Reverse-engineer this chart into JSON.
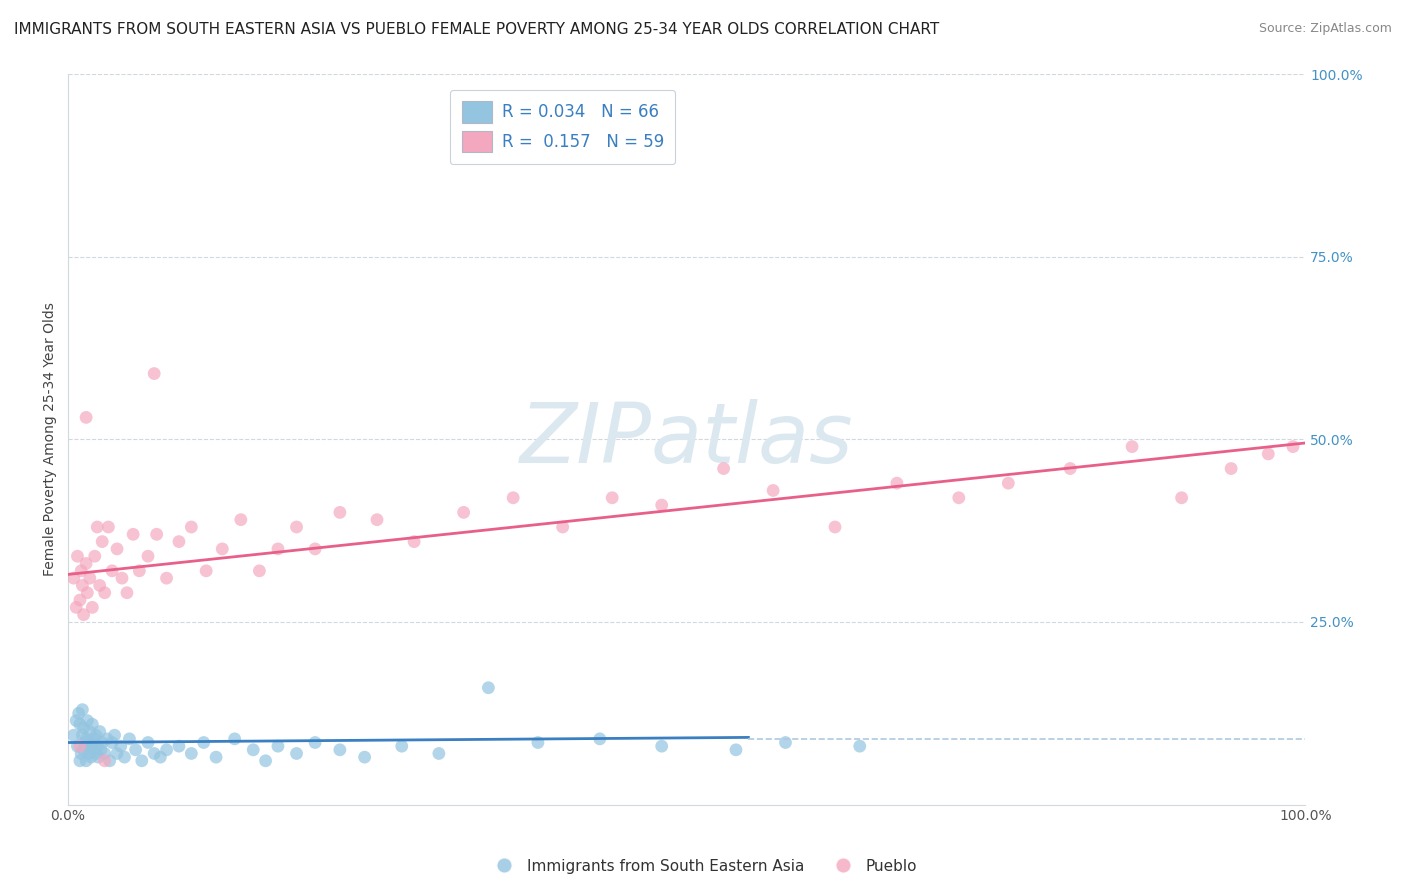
{
  "title": "IMMIGRANTS FROM SOUTH EASTERN ASIA VS PUEBLO FEMALE POVERTY AMONG 25-34 YEAR OLDS CORRELATION CHART",
  "source": "Source: ZipAtlas.com",
  "ylabel": "Female Poverty Among 25-34 Year Olds",
  "color_blue": "#93c4e0",
  "color_pink": "#f4a8c0",
  "line_blue": "#3a7fc1",
  "line_pink": "#e8608a",
  "dash_color": "#b0c8e0",
  "watermark_color": "#dce8f0",
  "blue_x": [
    0.005,
    0.007,
    0.008,
    0.009,
    0.01,
    0.01,
    0.011,
    0.012,
    0.012,
    0.013,
    0.013,
    0.014,
    0.015,
    0.015,
    0.016,
    0.017,
    0.018,
    0.018,
    0.019,
    0.02,
    0.02,
    0.021,
    0.022,
    0.023,
    0.023,
    0.024,
    0.025,
    0.026,
    0.027,
    0.028,
    0.03,
    0.032,
    0.034,
    0.036,
    0.038,
    0.04,
    0.043,
    0.046,
    0.05,
    0.055,
    0.06,
    0.065,
    0.07,
    0.075,
    0.08,
    0.09,
    0.1,
    0.11,
    0.12,
    0.135,
    0.15,
    0.16,
    0.17,
    0.185,
    0.2,
    0.22,
    0.24,
    0.27,
    0.3,
    0.34,
    0.38,
    0.43,
    0.48,
    0.54,
    0.58,
    0.64
  ],
  "blue_y": [
    0.095,
    0.115,
    0.08,
    0.125,
    0.06,
    0.11,
    0.07,
    0.095,
    0.13,
    0.075,
    0.105,
    0.085,
    0.06,
    0.09,
    0.115,
    0.07,
    0.08,
    0.1,
    0.065,
    0.085,
    0.11,
    0.075,
    0.09,
    0.07,
    0.095,
    0.08,
    0.065,
    0.1,
    0.075,
    0.085,
    0.07,
    0.09,
    0.06,
    0.085,
    0.095,
    0.07,
    0.08,
    0.065,
    0.09,
    0.075,
    0.06,
    0.085,
    0.07,
    0.065,
    0.075,
    0.08,
    0.07,
    0.085,
    0.065,
    0.09,
    0.075,
    0.06,
    0.08,
    0.07,
    0.085,
    0.075,
    0.065,
    0.08,
    0.07,
    0.16,
    0.085,
    0.09,
    0.08,
    0.075,
    0.085,
    0.08
  ],
  "pink_x": [
    0.005,
    0.007,
    0.008,
    0.01,
    0.011,
    0.012,
    0.013,
    0.015,
    0.016,
    0.018,
    0.02,
    0.022,
    0.024,
    0.026,
    0.028,
    0.03,
    0.033,
    0.036,
    0.04,
    0.044,
    0.048,
    0.053,
    0.058,
    0.065,
    0.072,
    0.08,
    0.09,
    0.1,
    0.112,
    0.125,
    0.14,
    0.155,
    0.17,
    0.185,
    0.2,
    0.22,
    0.25,
    0.28,
    0.32,
    0.36,
    0.4,
    0.44,
    0.48,
    0.53,
    0.57,
    0.62,
    0.67,
    0.72,
    0.76,
    0.81,
    0.86,
    0.9,
    0.94,
    0.97,
    0.99,
    0.03,
    0.015,
    0.07,
    0.01
  ],
  "pink_y": [
    0.31,
    0.27,
    0.34,
    0.28,
    0.32,
    0.3,
    0.26,
    0.33,
    0.29,
    0.31,
    0.27,
    0.34,
    0.38,
    0.3,
    0.36,
    0.29,
    0.38,
    0.32,
    0.35,
    0.31,
    0.29,
    0.37,
    0.32,
    0.34,
    0.37,
    0.31,
    0.36,
    0.38,
    0.32,
    0.35,
    0.39,
    0.32,
    0.35,
    0.38,
    0.35,
    0.4,
    0.39,
    0.36,
    0.4,
    0.42,
    0.38,
    0.42,
    0.41,
    0.46,
    0.43,
    0.38,
    0.44,
    0.42,
    0.44,
    0.46,
    0.49,
    0.42,
    0.46,
    0.48,
    0.49,
    0.06,
    0.53,
    0.59,
    0.08
  ],
  "blue_line_x0": 0.0,
  "blue_line_x1": 0.55,
  "blue_line_y0": 0.085,
  "blue_line_y1": 0.092,
  "dash_line_x0": 0.55,
  "dash_line_x1": 1.0,
  "dash_line_y": 0.09,
  "pink_line_x0": 0.0,
  "pink_line_x1": 1.0,
  "pink_line_y0": 0.315,
  "pink_line_y1": 0.495,
  "xlim": [
    0,
    1.0
  ],
  "ylim": [
    0,
    1.0
  ],
  "title_fontsize": 11,
  "label_fontsize": 10
}
